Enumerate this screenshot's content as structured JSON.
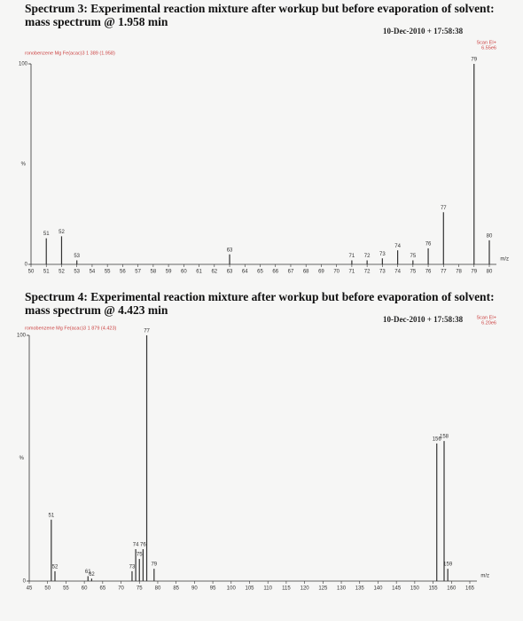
{
  "chart_data": [
    {
      "type": "bar",
      "title": "Spectrum 3: Experimental reaction mixture after workup but before evaporation of solvent: mass spectrum @ 1.958 min",
      "info": "10-Dec-2010 + 17:58:38",
      "sample": "ronobenzene Mg Fe(acac)3 1 389 (1.958)",
      "scan": "Scan EI+",
      "intensity": "6.55e6",
      "ylabel": "%",
      "xlabel": "m/z",
      "color": "#333333",
      "x": [
        51,
        52,
        53,
        63,
        71,
        72,
        73,
        74,
        75,
        76,
        77,
        79,
        80
      ],
      "values": [
        13,
        14,
        2,
        5,
        2,
        2,
        3,
        7,
        2,
        8,
        26,
        100,
        12
      ],
      "xlim": [
        50,
        80
      ],
      "xticks": [
        50,
        51,
        52,
        53,
        54,
        55,
        56,
        57,
        58,
        59,
        60,
        61,
        62,
        63,
        64,
        65,
        66,
        67,
        68,
        69,
        70,
        71,
        72,
        73,
        74,
        75,
        76,
        77,
        78,
        79,
        80
      ],
      "ylim": [
        0,
        100
      ],
      "yticks": [
        0,
        100
      ]
    },
    {
      "type": "bar",
      "title": "Spectrum 4: Experimental reaction mixture after workup but before evaporation of solvent: mass spectrum @ 4.423 min",
      "info": "10-Dec-2010 + 17:58:38",
      "sample": "romobenzene Mg Fe(acac)3 1 879 (4.423)",
      "scan": "Scan EI+",
      "intensity": "6.20e6",
      "ylabel": "%",
      "xlabel": "m/z",
      "color": "#333333",
      "x": [
        51,
        52,
        61,
        62,
        73,
        74,
        75,
        76,
        77,
        79,
        156,
        158,
        159
      ],
      "values": [
        25,
        4,
        2,
        1,
        4,
        13,
        9,
        13,
        100,
        5,
        56,
        57,
        5
      ],
      "xlim": [
        45,
        165
      ],
      "xticks": [
        45,
        50,
        55,
        60,
        65,
        70,
        75,
        80,
        85,
        90,
        95,
        100,
        105,
        110,
        115,
        120,
        125,
        130,
        135,
        140,
        145,
        150,
        155,
        160,
        165
      ],
      "ylim": [
        0,
        100
      ],
      "yticks": [
        0,
        100
      ]
    }
  ]
}
